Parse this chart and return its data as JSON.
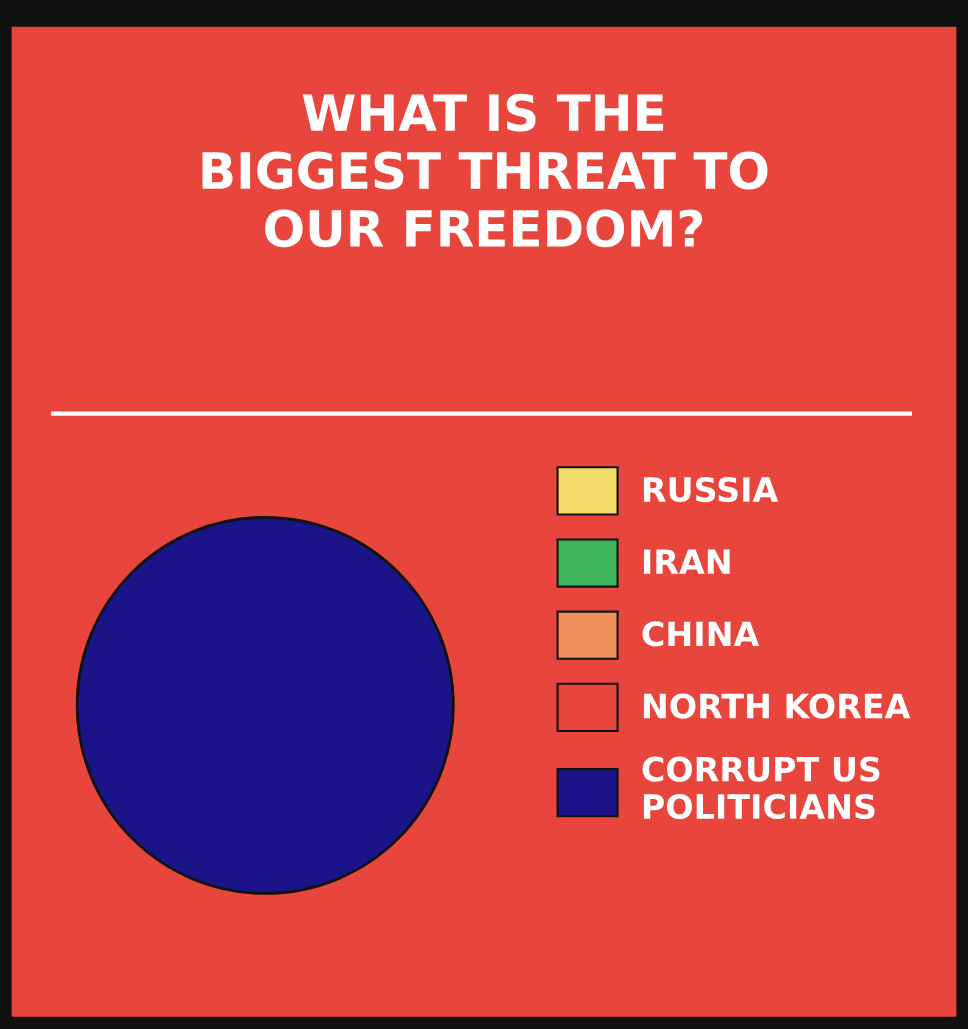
{
  "chart_data": {
    "type": "pie",
    "title": "WHAT IS THE\nBIGGEST THREAT TO\nOUR FREEDOM?",
    "categories": [
      "RUSSIA",
      "IRAN",
      "CHINA",
      "NORTH KOREA",
      "CORRUPT US\nPOLITICIANS"
    ],
    "values": [
      0,
      0,
      0,
      0,
      100
    ],
    "colors": [
      "#f5dc6a",
      "#3cb55a",
      "#f0905a",
      "#e8463c",
      "#1a1488"
    ],
    "legend": "right"
  }
}
